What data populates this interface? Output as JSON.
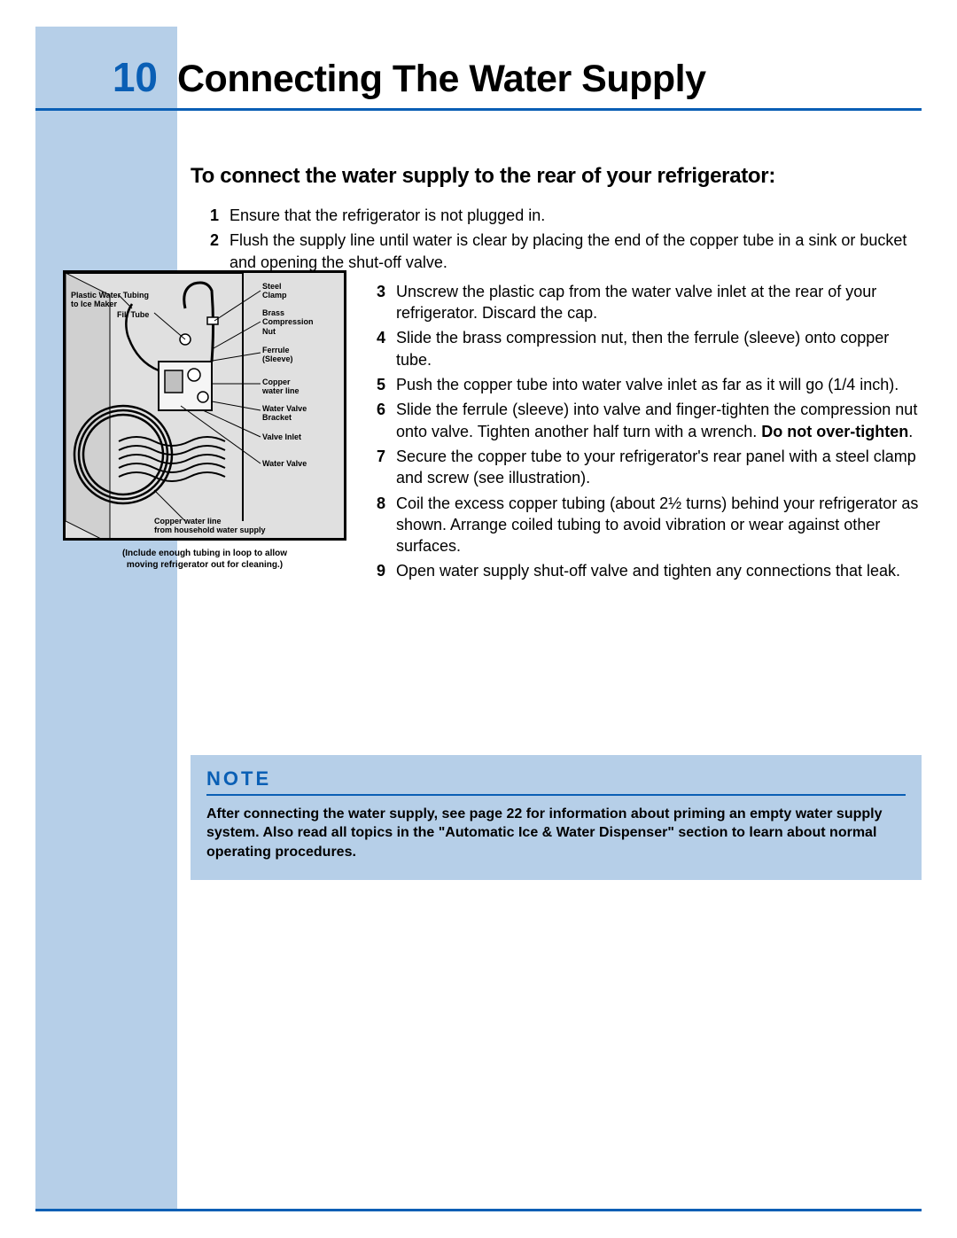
{
  "colors": {
    "accent_blue": "#0a5fb5",
    "sidebar_bg": "#b6cfe8",
    "note_bg": "#b6cfe8",
    "text": "#000000",
    "illus_bg": "#e0e0e0",
    "illus_border": "#000000",
    "page_bg": "#ffffff"
  },
  "typography": {
    "page_number_fontsize": 46,
    "page_title_fontsize": 43,
    "section_heading_fontsize": 24,
    "body_fontsize": 18,
    "note_title_fontsize": 22,
    "note_text_fontsize": 16,
    "illus_label_fontsize": 9,
    "illus_caption_fontsize": 10
  },
  "header": {
    "page_number": "10",
    "title": "Connecting The Water Supply"
  },
  "section": {
    "heading": "To connect the water supply to the rear of your refrigerator:"
  },
  "steps_top": [
    {
      "n": "1",
      "text": "Ensure that the refrigerator is not plugged in."
    },
    {
      "n": "2",
      "text": "Flush the supply line until water is clear by placing the end of the copper tube in a sink or bucket and opening the shut-off valve."
    }
  ],
  "steps_right": [
    {
      "n": "3",
      "text": "Unscrew the plastic cap from the water valve inlet at the rear of your refrigerator. Discard the cap."
    },
    {
      "n": "4",
      "text": "Slide the brass compression nut, then the ferrule (sleeve) onto copper tube."
    },
    {
      "n": "5",
      "text": "Push the copper tube into water valve inlet as far as it will go (1/4 inch)."
    },
    {
      "n": "6",
      "text_html": "Slide the ferrule (sleeve) into valve and finger-tighten the compression nut onto valve. Tighten another half turn with a wrench. <b>Do not over-tighten</b>."
    },
    {
      "n": "7",
      "text": "Secure the copper tube to your refrigerator's rear panel with a steel clamp and screw (see illustration)."
    },
    {
      "n": "8",
      "text": "Coil the excess copper tubing (about 2½ turns) behind your refrigerator as shown. Arrange coiled tubing to avoid vibration or wear against other surfaces."
    },
    {
      "n": "9",
      "text": "Open water supply shut-off valve and tighten any connections that leak."
    }
  ],
  "illustration": {
    "labels_left": [
      "Plastic Water Tubing\nto Ice Maker",
      "Fill Tube"
    ],
    "labels_right": [
      "Steel\nClamp",
      "Brass\nCompression\nNut",
      "Ferrule\n(Sleeve)",
      "Copper\nwater line",
      "Water Valve\nBracket",
      "Valve Inlet",
      "Water Valve"
    ],
    "bottom_label": "Copper water line\nfrom household water supply",
    "caption": "(Include enough tubing in loop to allow\nmoving refrigerator out for cleaning.)"
  },
  "note": {
    "title": "NOTE",
    "text": "After connecting the water supply, see page 22 for information about priming an empty water supply system. Also read all topics in the \"Automatic Ice & Water Dispenser\" section to learn about normal operating procedures."
  }
}
